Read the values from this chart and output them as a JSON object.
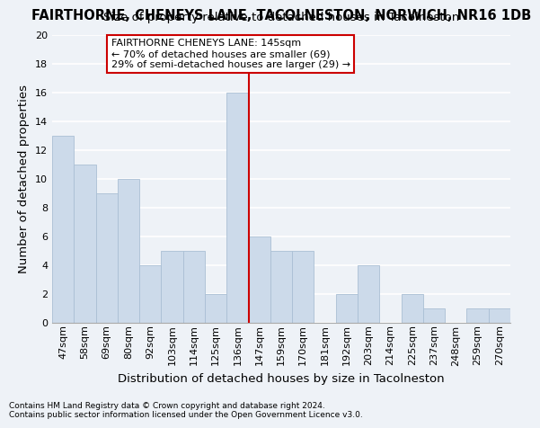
{
  "title": "FAIRTHORNE, CHENEYS LANE, TACOLNESTON, NORWICH, NR16 1DB",
  "subtitle": "Size of property relative to detached houses in Tacolneston",
  "xlabel": "Distribution of detached houses by size in Tacolneston",
  "ylabel": "Number of detached properties",
  "categories": [
    "47sqm",
    "58sqm",
    "69sqm",
    "80sqm",
    "92sqm",
    "103sqm",
    "114sqm",
    "125sqm",
    "136sqm",
    "147sqm",
    "159sqm",
    "170sqm",
    "181sqm",
    "192sqm",
    "203sqm",
    "214sqm",
    "225sqm",
    "237sqm",
    "248sqm",
    "259sqm",
    "270sqm"
  ],
  "values": [
    13,
    11,
    9,
    10,
    4,
    5,
    5,
    2,
    16,
    6,
    5,
    5,
    0,
    2,
    4,
    0,
    2,
    1,
    0,
    1,
    1
  ],
  "bar_color": "#ccdaea",
  "bar_edge_color": "#aabfd4",
  "vline_x_index": 8.5,
  "vline_color": "#cc0000",
  "annotation_line1": "FAIRTHORNE CHENEYS LANE: 145sqm",
  "annotation_line2": "← 70% of detached houses are smaller (69)",
  "annotation_line3": "29% of semi-detached houses are larger (29) →",
  "annotation_box_color": "#ffffff",
  "annotation_box_edge_color": "#cc0000",
  "ylim": [
    0,
    20
  ],
  "yticks": [
    0,
    2,
    4,
    6,
    8,
    10,
    12,
    14,
    16,
    18,
    20
  ],
  "footnote1": "Contains HM Land Registry data © Crown copyright and database right 2024.",
  "footnote2": "Contains public sector information licensed under the Open Government Licence v3.0.",
  "background_color": "#eef2f7",
  "grid_color": "#ffffff",
  "title_fontsize": 10.5,
  "subtitle_fontsize": 9.5,
  "tick_fontsize": 8,
  "axis_label_fontsize": 9.5,
  "annotation_fontsize": 8
}
